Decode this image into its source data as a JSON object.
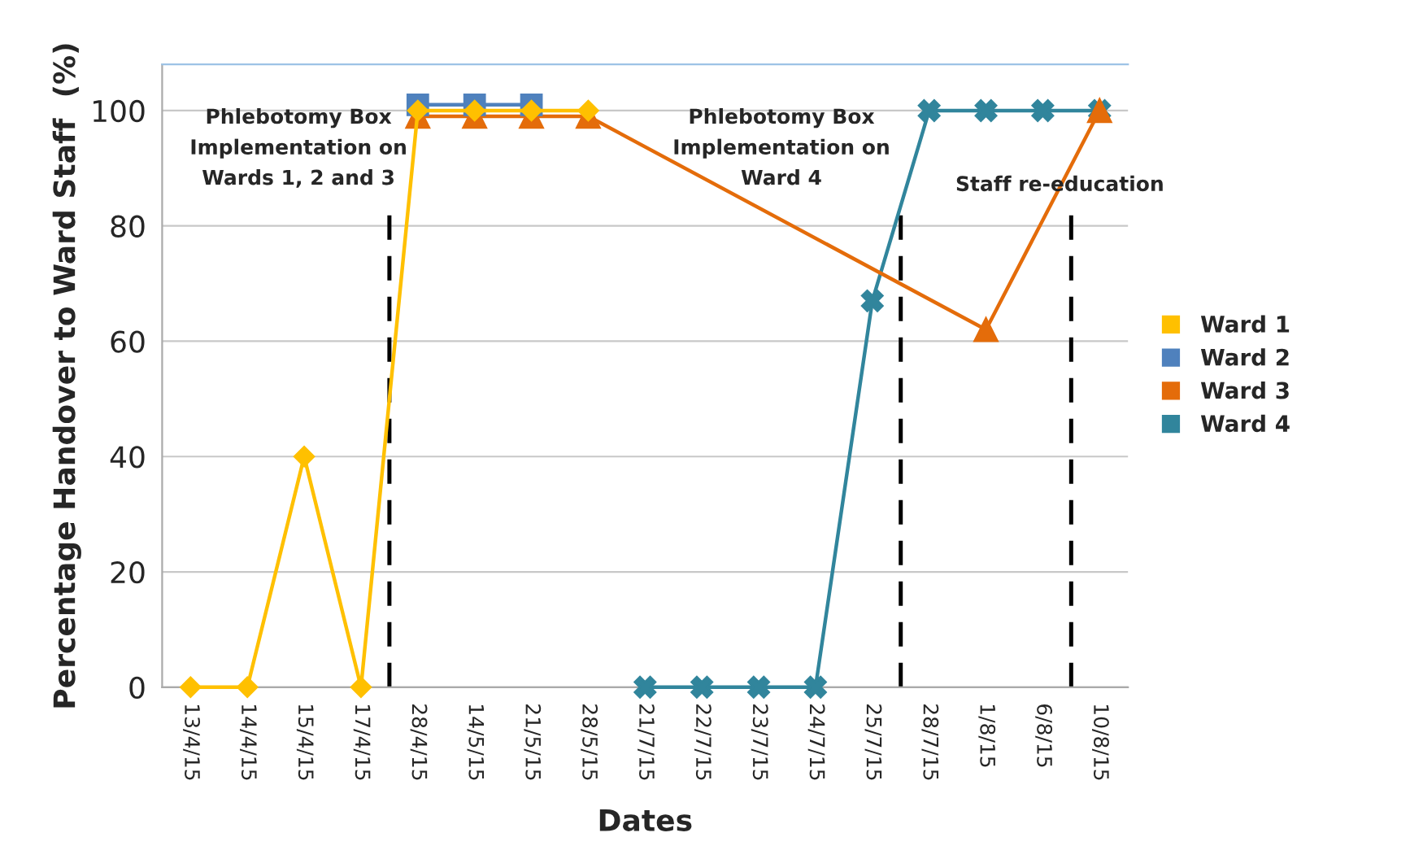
{
  "chart_data": {
    "type": "line",
    "xlabel": "Dates",
    "ylabel": "Percentage Handover to Ward Staff  (%)",
    "categories": [
      "13/4/15",
      "14/4/15",
      "15/4/15",
      "17/4/15",
      "28/4/15",
      "14/5/15",
      "21/5/15",
      "28/5/15",
      "21/7/15",
      "22/7/15",
      "23/7/15",
      "24/7/15",
      "25/7/15",
      "28/7/15",
      "1/8/15",
      "6/8/15",
      "10/8/15"
    ],
    "series": [
      {
        "name": "Ward 1",
        "color": "#ffc000",
        "marker": "diamond",
        "values": [
          0,
          0,
          40,
          0,
          100,
          100,
          100,
          100,
          null,
          null,
          null,
          null,
          null,
          null,
          null,
          null,
          null
        ]
      },
      {
        "name": "Ward 2",
        "color": "#4f81bd",
        "marker": "square",
        "values": [
          null,
          null,
          null,
          null,
          101,
          101,
          101,
          null,
          null,
          null,
          null,
          null,
          null,
          null,
          null,
          null,
          null
        ]
      },
      {
        "name": "Ward 3",
        "color": "#e46c0a",
        "marker": "triangle",
        "values": [
          null,
          null,
          null,
          null,
          99,
          99,
          99,
          99,
          null,
          null,
          null,
          null,
          null,
          null,
          62,
          null,
          100
        ]
      },
      {
        "name": "Ward 4",
        "color": "#31859c",
        "marker": "cross",
        "values": [
          null,
          null,
          null,
          null,
          null,
          null,
          null,
          null,
          0,
          0,
          0,
          0,
          67,
          100,
          100,
          100,
          100
        ]
      }
    ],
    "ylim": [
      0,
      108
    ],
    "yticks": [
      0,
      20,
      40,
      60,
      80,
      100
    ],
    "grid": "y",
    "legend": "right",
    "annotations": [
      "Phlebotomy Box\nImplementation on\nWards 1, 2 and 3",
      "Phlebotomy Box\nImplementation on\nWard 4",
      "Staff re-education"
    ]
  }
}
